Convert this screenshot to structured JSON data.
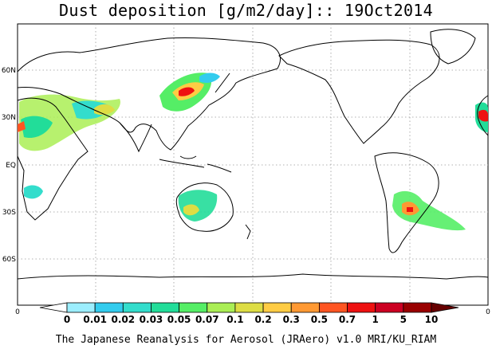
{
  "title": "Dust deposition [g/m2/day]:: 19Oct2014",
  "footer": "The Japanese Reanalysis for Aerosol (JRAero) v1.0 MRI/KU_RIAM",
  "map": {
    "lat_ticks": [
      "60N",
      "30N",
      "EQ",
      "30S",
      "60S"
    ],
    "lon_min_label": "0",
    "lon_max_label": "0",
    "grid": "dotted",
    "coastline_color": "#000000"
  },
  "colorbar": {
    "labels": [
      "0",
      "0.01",
      "0.02",
      "0.03",
      "0.05",
      "0.07",
      "0.1",
      "0.2",
      "0.3",
      "0.5",
      "0.7",
      "1",
      "5",
      "10"
    ],
    "colors": [
      "#ffffff",
      "#9ceefe",
      "#33ccee",
      "#33ddcc",
      "#22dd99",
      "#55ee66",
      "#aaee55",
      "#dddd44",
      "#ffcc44",
      "#ff9933",
      "#ff5522",
      "#ee1111",
      "#cc0022",
      "#990000",
      "#660000"
    ]
  }
}
